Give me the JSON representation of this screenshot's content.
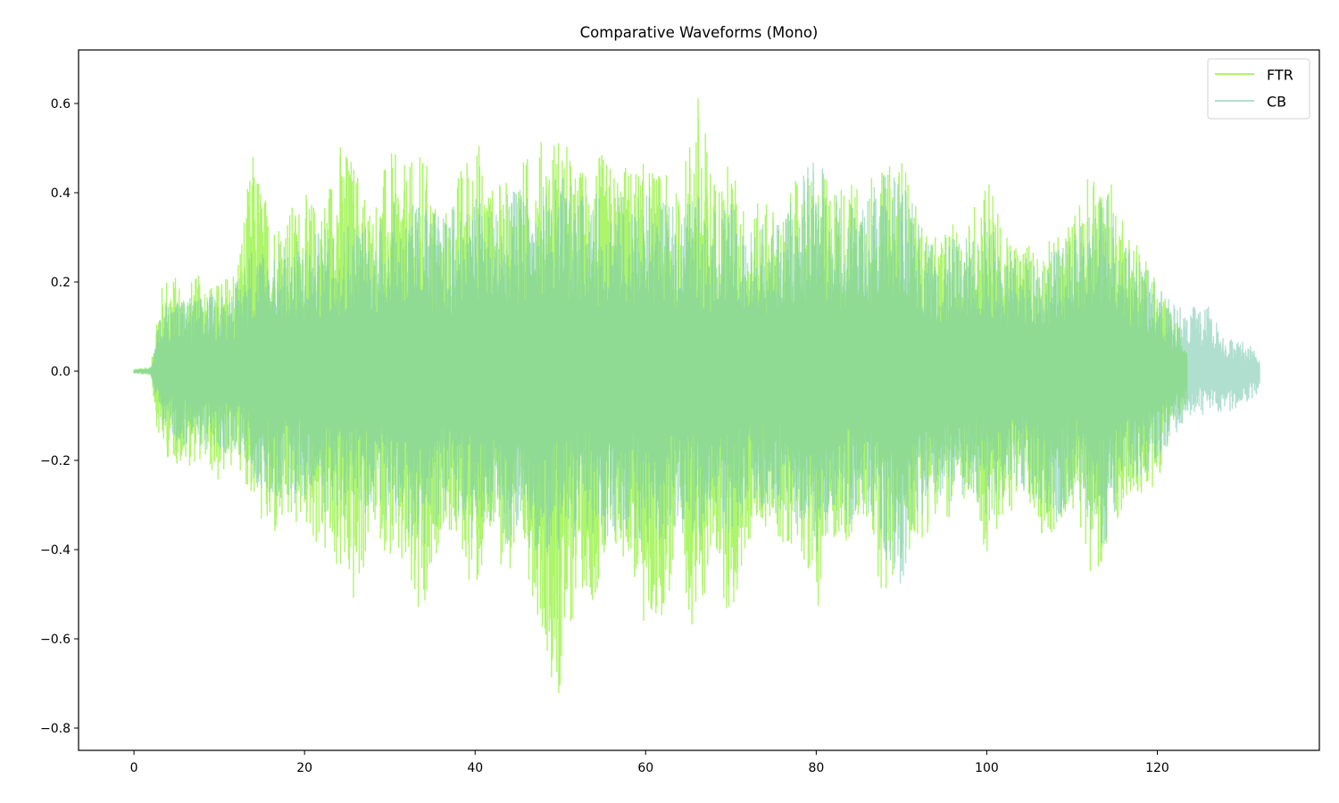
{
  "chart_data": {
    "type": "line",
    "title": "Comparative Waveforms (Mono)",
    "xlabel": "",
    "ylabel": "",
    "xlim": [
      -6.5,
      139
    ],
    "ylim": [
      -0.85,
      0.72
    ],
    "xticks": [
      0,
      20,
      40,
      60,
      80,
      100,
      120
    ],
    "yticks": [
      -0.8,
      -0.6,
      -0.4,
      -0.2,
      0.0,
      0.2,
      0.4,
      0.6
    ],
    "grid": false,
    "legend": "top-right",
    "note_values": "envelope peaks (max, min) sampled every 2 s",
    "series": [
      {
        "name": "FTR",
        "color": "#adf56a",
        "t": [
          0,
          2,
          2.8,
          4,
          6,
          8,
          10,
          12,
          14,
          16,
          18,
          20,
          22,
          24,
          26,
          28,
          30,
          32,
          34,
          36,
          38,
          40,
          42,
          44,
          46,
          48,
          50,
          52,
          54,
          56,
          58,
          60,
          62,
          64,
          66,
          68,
          70,
          72,
          74,
          76,
          78,
          80,
          82,
          84,
          86,
          88,
          90,
          92,
          94,
          96,
          98,
          100,
          102,
          104,
          106,
          108,
          110,
          112,
          114,
          116,
          118,
          120,
          122,
          123.5
        ],
        "max": [
          0.005,
          0.01,
          0.17,
          0.23,
          0.2,
          0.22,
          0.2,
          0.25,
          0.5,
          0.36,
          0.37,
          0.4,
          0.38,
          0.53,
          0.48,
          0.38,
          0.5,
          0.46,
          0.5,
          0.34,
          0.45,
          0.55,
          0.42,
          0.43,
          0.49,
          0.53,
          0.55,
          0.45,
          0.5,
          0.47,
          0.47,
          0.47,
          0.45,
          0.4,
          0.65,
          0.45,
          0.48,
          0.35,
          0.4,
          0.35,
          0.45,
          0.45,
          0.44,
          0.43,
          0.45,
          0.45,
          0.5,
          0.35,
          0.3,
          0.33,
          0.35,
          0.48,
          0.3,
          0.3,
          0.29,
          0.3,
          0.35,
          0.45,
          0.45,
          0.37,
          0.28,
          0.2,
          0.12,
          0.08
        ],
        "min": [
          -0.005,
          -0.01,
          -0.15,
          -0.2,
          -0.22,
          -0.2,
          -0.26,
          -0.2,
          -0.3,
          -0.4,
          -0.37,
          -0.35,
          -0.42,
          -0.46,
          -0.55,
          -0.35,
          -0.43,
          -0.5,
          -0.64,
          -0.35,
          -0.4,
          -0.52,
          -0.4,
          -0.47,
          -0.45,
          -0.6,
          -0.78,
          -0.48,
          -0.52,
          -0.45,
          -0.42,
          -0.62,
          -0.55,
          -0.45,
          -0.62,
          -0.4,
          -0.59,
          -0.4,
          -0.35,
          -0.4,
          -0.38,
          -0.55,
          -0.38,
          -0.4,
          -0.35,
          -0.53,
          -0.45,
          -0.38,
          -0.35,
          -0.33,
          -0.3,
          -0.42,
          -0.35,
          -0.28,
          -0.36,
          -0.38,
          -0.3,
          -0.45,
          -0.43,
          -0.3,
          -0.3,
          -0.25,
          -0.12,
          -0.08
        ]
      },
      {
        "name": "CB",
        "color": "#b0dfd0",
        "t": [
          0,
          2,
          3,
          4,
          6,
          8,
          10,
          12,
          14,
          16,
          18,
          20,
          22,
          24,
          26,
          28,
          30,
          32,
          34,
          36,
          38,
          40,
          42,
          44,
          46,
          48,
          50,
          52,
          54,
          56,
          58,
          60,
          62,
          64,
          66,
          68,
          70,
          72,
          74,
          76,
          78,
          80,
          82,
          84,
          86,
          88,
          90,
          92,
          94,
          96,
          98,
          100,
          102,
          104,
          106,
          108,
          110,
          112,
          114,
          116,
          118,
          120,
          122,
          124,
          126,
          128,
          130,
          132
        ],
        "max": [
          0.005,
          0.01,
          0.12,
          0.17,
          0.17,
          0.17,
          0.18,
          0.2,
          0.3,
          0.28,
          0.3,
          0.3,
          0.32,
          0.35,
          0.35,
          0.33,
          0.38,
          0.37,
          0.4,
          0.35,
          0.38,
          0.4,
          0.38,
          0.4,
          0.42,
          0.42,
          0.45,
          0.4,
          0.4,
          0.4,
          0.4,
          0.4,
          0.38,
          0.38,
          0.4,
          0.36,
          0.38,
          0.32,
          0.35,
          0.34,
          0.42,
          0.52,
          0.4,
          0.38,
          0.42,
          0.45,
          0.44,
          0.34,
          0.3,
          0.3,
          0.3,
          0.35,
          0.28,
          0.26,
          0.27,
          0.28,
          0.3,
          0.35,
          0.45,
          0.3,
          0.25,
          0.2,
          0.15,
          0.15,
          0.15,
          0.08,
          0.07,
          0.04
        ],
        "min": [
          -0.005,
          -0.01,
          -0.1,
          -0.15,
          -0.17,
          -0.17,
          -0.2,
          -0.18,
          -0.25,
          -0.28,
          -0.3,
          -0.3,
          -0.32,
          -0.33,
          -0.35,
          -0.32,
          -0.35,
          -0.38,
          -0.4,
          -0.33,
          -0.35,
          -0.38,
          -0.36,
          -0.4,
          -0.4,
          -0.42,
          -0.4,
          -0.38,
          -0.38,
          -0.38,
          -0.36,
          -0.4,
          -0.38,
          -0.36,
          -0.4,
          -0.34,
          -0.38,
          -0.33,
          -0.3,
          -0.33,
          -0.35,
          -0.42,
          -0.36,
          -0.35,
          -0.32,
          -0.45,
          -0.55,
          -0.35,
          -0.3,
          -0.3,
          -0.28,
          -0.33,
          -0.32,
          -0.26,
          -0.32,
          -0.38,
          -0.28,
          -0.36,
          -0.42,
          -0.28,
          -0.25,
          -0.2,
          -0.15,
          -0.1,
          -0.1,
          -0.1,
          -0.08,
          -0.05
        ]
      }
    ]
  }
}
